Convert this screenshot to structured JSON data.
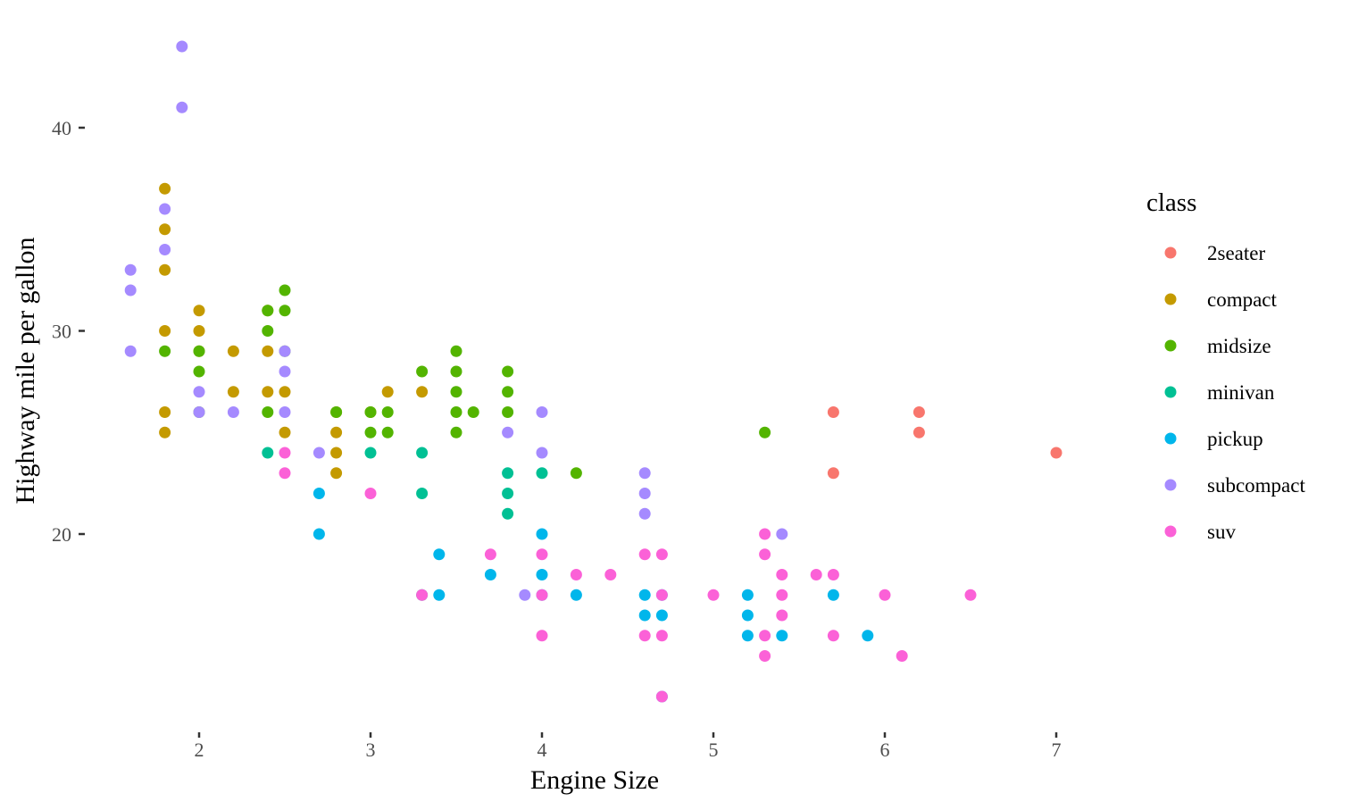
{
  "chart_data": {
    "type": "scatter",
    "title": "",
    "xlabel": "Engine Size",
    "ylabel": "Highway mile per gallon",
    "xlim": [
      1.4,
      7.2
    ],
    "ylim": [
      11,
      45
    ],
    "x_ticks": [
      2,
      3,
      4,
      5,
      6,
      7
    ],
    "y_ticks": [
      20,
      30,
      40
    ],
    "grid": false,
    "legend": {
      "title": "class",
      "placement": "right"
    },
    "series": [
      {
        "name": "2seater",
        "color": "#F8766D",
        "points": [
          [
            5.7,
            26
          ],
          [
            5.7,
            23
          ],
          [
            6.2,
            26
          ],
          [
            6.2,
            25
          ],
          [
            7.0,
            24
          ]
        ]
      },
      {
        "name": "compact",
        "color": "#C49A00",
        "points": [
          [
            1.8,
            37
          ],
          [
            1.8,
            35
          ],
          [
            1.8,
            33
          ],
          [
            1.8,
            30
          ],
          [
            1.8,
            26
          ],
          [
            1.8,
            25
          ],
          [
            2.0,
            31
          ],
          [
            2.0,
            30
          ],
          [
            2.0,
            29
          ],
          [
            2.2,
            29
          ],
          [
            2.2,
            27
          ],
          [
            2.4,
            31
          ],
          [
            2.4,
            29
          ],
          [
            2.4,
            27
          ],
          [
            2.5,
            27
          ],
          [
            2.5,
            25
          ],
          [
            2.8,
            26
          ],
          [
            2.8,
            25
          ],
          [
            2.8,
            24
          ],
          [
            2.8,
            23
          ],
          [
            3.0,
            26
          ],
          [
            3.1,
            27
          ],
          [
            3.3,
            27
          ]
        ]
      },
      {
        "name": "midsize",
        "color": "#53B400",
        "points": [
          [
            1.8,
            29
          ],
          [
            2.0,
            29
          ],
          [
            2.0,
            28
          ],
          [
            2.0,
            26
          ],
          [
            2.4,
            31
          ],
          [
            2.4,
            30
          ],
          [
            2.4,
            26
          ],
          [
            2.5,
            32
          ],
          [
            2.5,
            31
          ],
          [
            2.5,
            29
          ],
          [
            2.8,
            26
          ],
          [
            3.0,
            26
          ],
          [
            3.0,
            25
          ],
          [
            3.1,
            26
          ],
          [
            3.1,
            25
          ],
          [
            3.3,
            28
          ],
          [
            3.5,
            29
          ],
          [
            3.5,
            28
          ],
          [
            3.5,
            27
          ],
          [
            3.5,
            26
          ],
          [
            3.5,
            25
          ],
          [
            3.6,
            26
          ],
          [
            3.8,
            28
          ],
          [
            3.8,
            27
          ],
          [
            3.8,
            26
          ],
          [
            4.2,
            23
          ],
          [
            5.3,
            25
          ]
        ]
      },
      {
        "name": "minivan",
        "color": "#00C094",
        "points": [
          [
            2.4,
            24
          ],
          [
            3.0,
            24
          ],
          [
            3.3,
            24
          ],
          [
            3.3,
            22
          ],
          [
            3.3,
            17
          ],
          [
            3.8,
            23
          ],
          [
            3.8,
            22
          ],
          [
            3.8,
            21
          ],
          [
            4.0,
            23
          ]
        ]
      },
      {
        "name": "pickup",
        "color": "#00B6EB",
        "points": [
          [
            2.7,
            22
          ],
          [
            2.7,
            20
          ],
          [
            3.4,
            19
          ],
          [
            3.4,
            17
          ],
          [
            3.7,
            18
          ],
          [
            4.0,
            20
          ],
          [
            4.0,
            18
          ],
          [
            4.0,
            17
          ],
          [
            4.2,
            17
          ],
          [
            4.6,
            17
          ],
          [
            4.6,
            16
          ],
          [
            4.7,
            17
          ],
          [
            4.7,
            16
          ],
          [
            4.7,
            12
          ],
          [
            5.2,
            17
          ],
          [
            5.2,
            16
          ],
          [
            5.2,
            15
          ],
          [
            5.4,
            15
          ],
          [
            5.7,
            17
          ],
          [
            5.9,
            15
          ]
        ]
      },
      {
        "name": "subcompact",
        "color": "#A58AFF",
        "points": [
          [
            1.6,
            33
          ],
          [
            1.6,
            32
          ],
          [
            1.6,
            29
          ],
          [
            1.8,
            36
          ],
          [
            1.8,
            34
          ],
          [
            1.9,
            44
          ],
          [
            1.9,
            41
          ],
          [
            2.0,
            27
          ],
          [
            2.0,
            26
          ],
          [
            2.2,
            26
          ],
          [
            2.5,
            29
          ],
          [
            2.5,
            28
          ],
          [
            2.5,
            26
          ],
          [
            2.7,
            24
          ],
          [
            3.8,
            25
          ],
          [
            3.9,
            17
          ],
          [
            4.0,
            26
          ],
          [
            4.0,
            24
          ],
          [
            4.6,
            23
          ],
          [
            4.6,
            22
          ],
          [
            4.6,
            21
          ],
          [
            5.4,
            20
          ]
        ]
      },
      {
        "name": "suv",
        "color": "#FB61D7",
        "points": [
          [
            2.5,
            24
          ],
          [
            2.5,
            23
          ],
          [
            3.0,
            22
          ],
          [
            3.3,
            17
          ],
          [
            3.7,
            19
          ],
          [
            4.0,
            19
          ],
          [
            4.0,
            17
          ],
          [
            4.0,
            15
          ],
          [
            4.2,
            18
          ],
          [
            4.4,
            18
          ],
          [
            4.6,
            19
          ],
          [
            4.6,
            15
          ],
          [
            4.7,
            19
          ],
          [
            4.7,
            17
          ],
          [
            4.7,
            15
          ],
          [
            4.7,
            12
          ],
          [
            5.0,
            17
          ],
          [
            5.3,
            20
          ],
          [
            5.3,
            19
          ],
          [
            5.3,
            15
          ],
          [
            5.3,
            14
          ],
          [
            5.4,
            18
          ],
          [
            5.4,
            17
          ],
          [
            5.4,
            16
          ],
          [
            5.6,
            18
          ],
          [
            5.7,
            18
          ],
          [
            5.7,
            15
          ],
          [
            6.0,
            17
          ],
          [
            6.1,
            14
          ],
          [
            6.5,
            17
          ]
        ]
      }
    ]
  }
}
